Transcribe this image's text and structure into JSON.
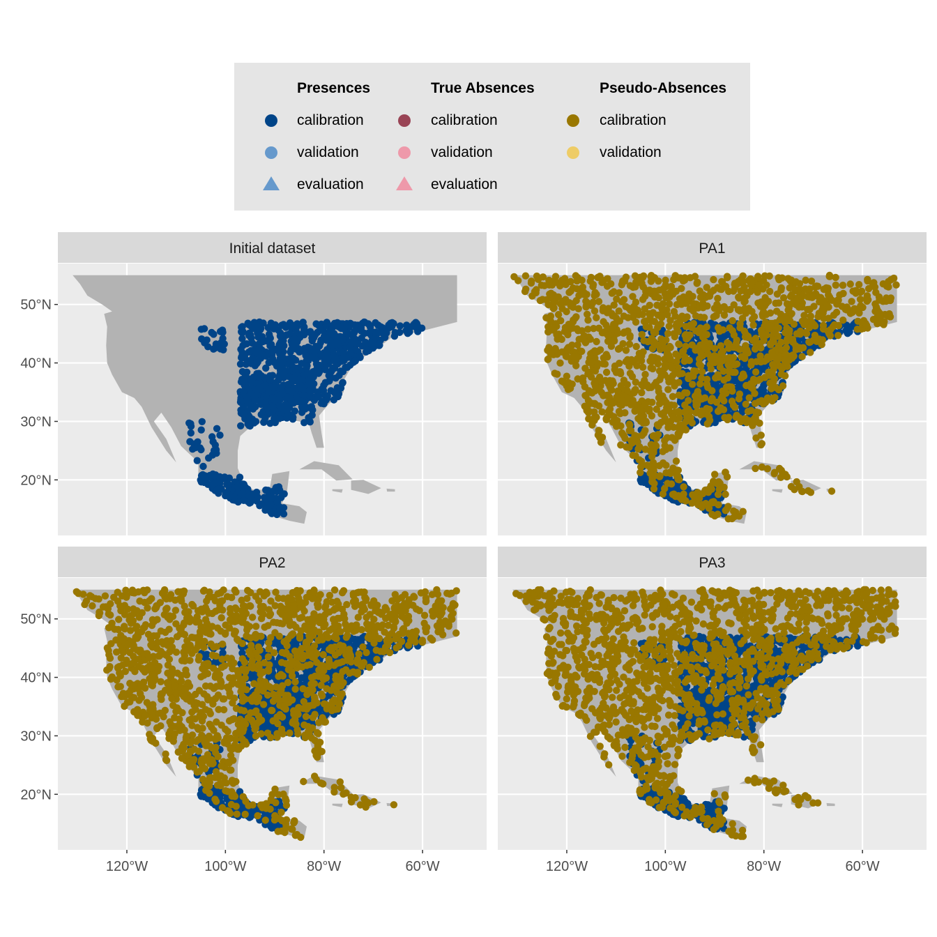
{
  "legend": {
    "groups": [
      {
        "title": "Presences",
        "items": [
          {
            "label": "calibration",
            "shape": "circle",
            "color": "#004488"
          },
          {
            "label": "validation",
            "shape": "circle",
            "color": "#6699CC"
          },
          {
            "label": "evaluation",
            "shape": "triangle",
            "color": "#6699CC"
          }
        ]
      },
      {
        "title": "True Absences",
        "items": [
          {
            "label": "calibration",
            "shape": "circle",
            "color": "#994455"
          },
          {
            "label": "validation",
            "shape": "circle",
            "color": "#EE99AA"
          },
          {
            "label": "evaluation",
            "shape": "triangle",
            "color": "#EE99AA"
          }
        ]
      },
      {
        "title": "Pseudo-Absences",
        "items": [
          {
            "label": "calibration",
            "shape": "circle",
            "color": "#997700"
          },
          {
            "label": "validation",
            "shape": "circle",
            "color": "#EECC66"
          }
        ]
      }
    ]
  },
  "chart_data": {
    "type": "scatter",
    "xlim": [
      -134,
      -47
    ],
    "ylim": [
      10.5,
      57
    ],
    "x_ticks": [
      {
        "value": -120,
        "label": "120°W"
      },
      {
        "value": -100,
        "label": "100°W"
      },
      {
        "value": -80,
        "label": "80°W"
      },
      {
        "value": -60,
        "label": "60°W"
      }
    ],
    "y_ticks": [
      {
        "value": 20,
        "label": "20°N"
      },
      {
        "value": 30,
        "label": "30°N"
      },
      {
        "value": 40,
        "label": "40°N"
      },
      {
        "value": 50,
        "label": "50°N"
      }
    ],
    "colors": {
      "land": "#B3B3B3",
      "panel_bg": "#EBEBEB",
      "strip_bg": "#D9D9D9",
      "grid": "#FFFFFF",
      "presence_calibration": "#004488",
      "pseudo_absence_calibration": "#997700"
    },
    "panels": [
      {
        "title": "Initial dataset",
        "layers": [
          "presence_calibration"
        ]
      },
      {
        "title": "PA1",
        "layers": [
          "presence_calibration",
          "pseudo_absence_calibration"
        ]
      },
      {
        "title": "PA2",
        "layers": [
          "presence_calibration",
          "pseudo_absence_calibration"
        ]
      },
      {
        "title": "PA3",
        "layers": [
          "presence_calibration",
          "pseudo_absence_calibration"
        ]
      }
    ],
    "land_outline_lonlat": [
      [
        -131,
        55
      ],
      [
        -53,
        55
      ],
      [
        -53,
        47
      ],
      [
        -60,
        45.5
      ],
      [
        -66,
        44.5
      ],
      [
        -70,
        42
      ],
      [
        -74,
        40
      ],
      [
        -76,
        37
      ],
      [
        -76,
        35
      ],
      [
        -79,
        33
      ],
      [
        -81,
        31
      ],
      [
        -80.5,
        28
      ],
      [
        -80,
        25.5
      ],
      [
        -81.5,
        25.5
      ],
      [
        -82.5,
        28
      ],
      [
        -83,
        29.5
      ],
      [
        -85,
        30
      ],
      [
        -88,
        30.3
      ],
      [
        -90,
        29.2
      ],
      [
        -93,
        29.7
      ],
      [
        -95,
        29
      ],
      [
        -97,
        27.5
      ],
      [
        -97.5,
        25
      ],
      [
        -97.5,
        22
      ],
      [
        -96,
        19
      ],
      [
        -94,
        18.2
      ],
      [
        -91,
        18.5
      ],
      [
        -90.5,
        21
      ],
      [
        -87,
        21.5
      ],
      [
        -87.5,
        18
      ],
      [
        -88.5,
        16
      ],
      [
        -85,
        15.5
      ],
      [
        -83.5,
        14.5
      ],
      [
        -84,
        12.5
      ],
      [
        -87,
        13
      ],
      [
        -91,
        14
      ],
      [
        -94,
        16
      ],
      [
        -97,
        16
      ],
      [
        -100,
        17
      ],
      [
        -103,
        18.5
      ],
      [
        -105.5,
        20
      ],
      [
        -105.5,
        23
      ],
      [
        -109,
        25.8
      ],
      [
        -111,
        29
      ],
      [
        -113,
        31.5
      ],
      [
        -114.5,
        30
      ],
      [
        -112,
        27
      ],
      [
        -110,
        23
      ],
      [
        -112,
        25
      ],
      [
        -115,
        29
      ],
      [
        -117,
        32.5
      ],
      [
        -118.5,
        34
      ],
      [
        -121,
        35
      ],
      [
        -123,
        38
      ],
      [
        -124,
        40
      ],
      [
        -124.2,
        43
      ],
      [
        -124,
        46.2
      ],
      [
        -124.6,
        48.4
      ],
      [
        -123,
        48.8
      ],
      [
        -125,
        50
      ],
      [
        -128,
        51.5
      ],
      [
        -129.5,
        53.5
      ],
      [
        -131,
        55
      ]
    ],
    "islands_lonlat": [
      [
        [
          -85,
          21.8
        ],
        [
          -82,
          23.2
        ],
        [
          -77,
          22.5
        ],
        [
          -74.2,
          20.1
        ],
        [
          -77.5,
          19.9
        ],
        [
          -80.5,
          21.8
        ],
        [
          -85,
          21.8
        ]
      ],
      [
        [
          -74.5,
          19.9
        ],
        [
          -72,
          20
        ],
        [
          -68.4,
          18.6
        ],
        [
          -71,
          17.6
        ],
        [
          -74.5,
          18.3
        ],
        [
          -74.5,
          19.9
        ]
      ],
      [
        [
          -78.3,
          18.4
        ],
        [
          -76.2,
          18.4
        ],
        [
          -76.4,
          17.8
        ],
        [
          -78.3,
          18.1
        ],
        [
          -78.3,
          18.4
        ]
      ],
      [
        [
          -67.3,
          18.5
        ],
        [
          -65.6,
          18.4
        ],
        [
          -65.6,
          18
        ],
        [
          -67.2,
          18
        ],
        [
          -67.3,
          18.5
        ]
      ],
      [
        [
          -64,
          46.5
        ],
        [
          -61.5,
          47
        ],
        [
          -60,
          46
        ],
        [
          -62,
          45.6
        ],
        [
          -64,
          46.5
        ]
      ]
    ]
  }
}
